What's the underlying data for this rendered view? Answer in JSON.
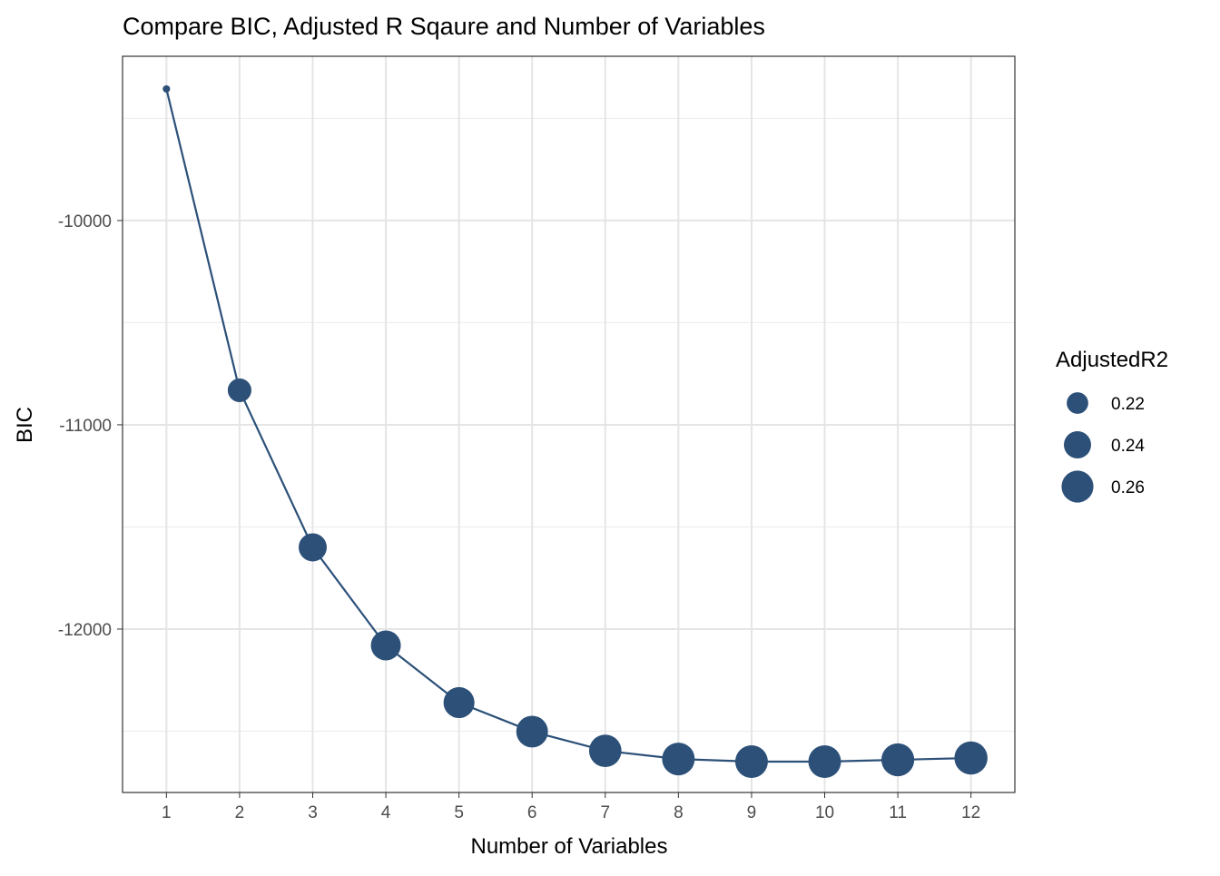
{
  "chart_data": {
    "type": "line",
    "title": "Compare BIC, Adjusted R Sqaure and Number of Variables",
    "xlabel": "Number of Variables",
    "ylabel": "BIC",
    "x": [
      1,
      2,
      3,
      4,
      5,
      6,
      7,
      8,
      9,
      10,
      11,
      12
    ],
    "x_ticks": [
      "1",
      "2",
      "3",
      "4",
      "5",
      "6",
      "7",
      "8",
      "9",
      "10",
      "11",
      "12"
    ],
    "y_ticks": [
      -10000,
      -11000,
      -12000
    ],
    "y_tick_labels": [
      "-10000",
      "-11000",
      "-12000"
    ],
    "ylim": [
      -12800,
      -9196
    ],
    "xlim": [
      0.4,
      12.6
    ],
    "series": [
      {
        "name": "BIC",
        "values": [
          -9356,
          -10831,
          -11600,
          -12080,
          -12360,
          -12502,
          -12596,
          -12636,
          -12649,
          -12649,
          -12640,
          -12631
        ],
        "size_values": [
          0.19,
          0.223,
          0.238,
          0.245,
          0.249,
          0.252,
          0.255,
          0.256,
          0.256,
          0.256,
          0.257,
          0.258
        ]
      }
    ],
    "legend": {
      "title": "AdjustedR2",
      "entries": [
        "0.22",
        "0.24",
        "0.26"
      ],
      "values": [
        0.22,
        0.24,
        0.26
      ],
      "placement": "right"
    },
    "color": "#2c5078",
    "grid": true
  }
}
